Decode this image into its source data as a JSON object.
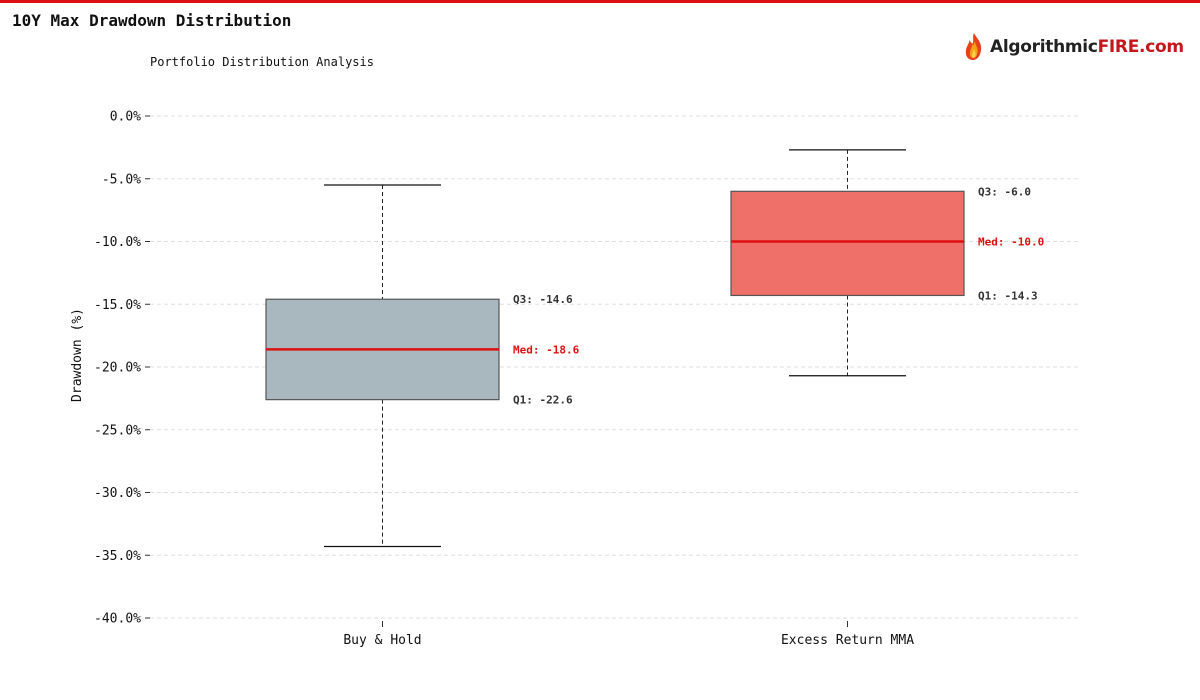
{
  "title": "10Y Max Drawdown Distribution",
  "subtitle": "Portfolio Distribution Analysis",
  "logo": {
    "part1": "Algorithmic",
    "part2": "FIRE.com",
    "icon": "flame-icon"
  },
  "colors": {
    "accent": "#dd1111",
    "buy_hold_box": "#a9b8bf",
    "mma_box": "#ee7068",
    "median_line": "#dd1111",
    "box_edge": "#555555",
    "grid": "#dddddd",
    "logo_dark": "#222222",
    "logo_red": "#c4161c"
  },
  "chart_data": {
    "type": "box",
    "title": "10Y Max Drawdown Distribution",
    "subtitle": "Portfolio Distribution Analysis",
    "ylabel": "Drawdown (%)",
    "xlabel": "",
    "ylim": [
      -40,
      0
    ],
    "yticks": [
      "0.0%",
      "-5.0%",
      "-10.0%",
      "-15.0%",
      "-20.0%",
      "-25.0%",
      "-30.0%",
      "-35.0%",
      "-40.0%"
    ],
    "grid": true,
    "categories": [
      "Buy & Hold",
      "Excess Return MMA"
    ],
    "series": [
      {
        "category": "Buy & Hold",
        "whisker_high": -5.5,
        "q3": -14.6,
        "median": -18.6,
        "q1": -22.6,
        "whisker_low": -34.3,
        "labels": {
          "q3": "Q3: -14.6",
          "median": "Med: -18.6",
          "q1": "Q1: -22.6"
        },
        "color": "#a9b8bf"
      },
      {
        "category": "Excess Return MMA",
        "whisker_high": -2.7,
        "q3": -6.0,
        "median": -10.0,
        "q1": -14.3,
        "whisker_low": -20.7,
        "labels": {
          "q3": "Q3: -6.0",
          "median": "Med: -10.0",
          "q1": "Q1: -14.3"
        },
        "color": "#ee7068"
      }
    ]
  }
}
